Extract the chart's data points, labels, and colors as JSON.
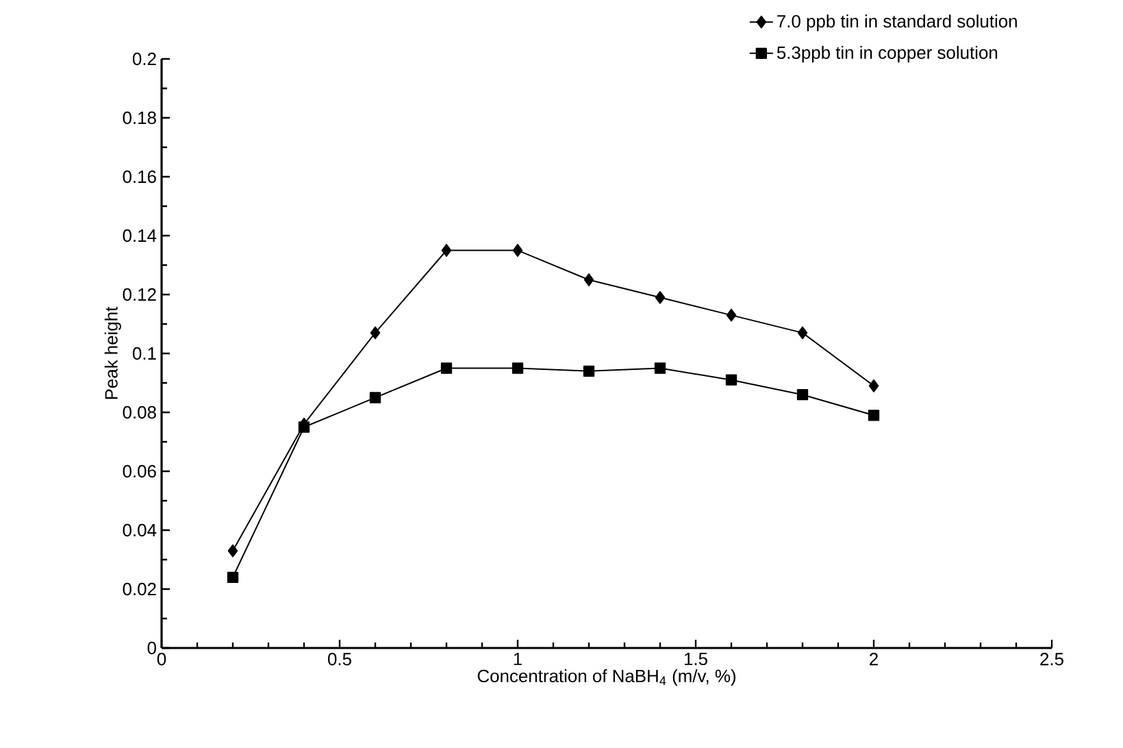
{
  "chart_data": {
    "type": "line",
    "xlabel": "Concentration of NaBH$_{4}$ (m/v, %)",
    "ylabel": "Peak height",
    "xlim": [
      0,
      2.5
    ],
    "xticks": [
      0,
      0.5,
      1,
      1.5,
      2,
      2.5
    ],
    "ylim": [
      0,
      0.2
    ],
    "yticks": [
      0,
      0.02,
      0.04,
      0.06,
      0.08,
      0.1,
      0.12,
      0.14,
      0.16,
      0.18,
      0.2
    ],
    "x": [
      0.2,
      0.4,
      0.6,
      0.8,
      1.0,
      1.2,
      1.4,
      1.6,
      1.8,
      2.0
    ],
    "series": [
      {
        "name": "7.0 ppb tin in standard solution",
        "color": "#000000",
        "marker": "diamond",
        "values": [
          0.033,
          0.076,
          0.107,
          0.135,
          0.135,
          0.125,
          0.119,
          0.113,
          0.107,
          0.089
        ]
      },
      {
        "name": "5.3ppb tin in copper solution",
        "color": "#000000",
        "marker": "square",
        "values": [
          0.024,
          0.075,
          0.085,
          0.095,
          0.095,
          0.094,
          0.095,
          0.091,
          0.086,
          0.079
        ]
      }
    ],
    "grid": false,
    "legend": "top right"
  }
}
